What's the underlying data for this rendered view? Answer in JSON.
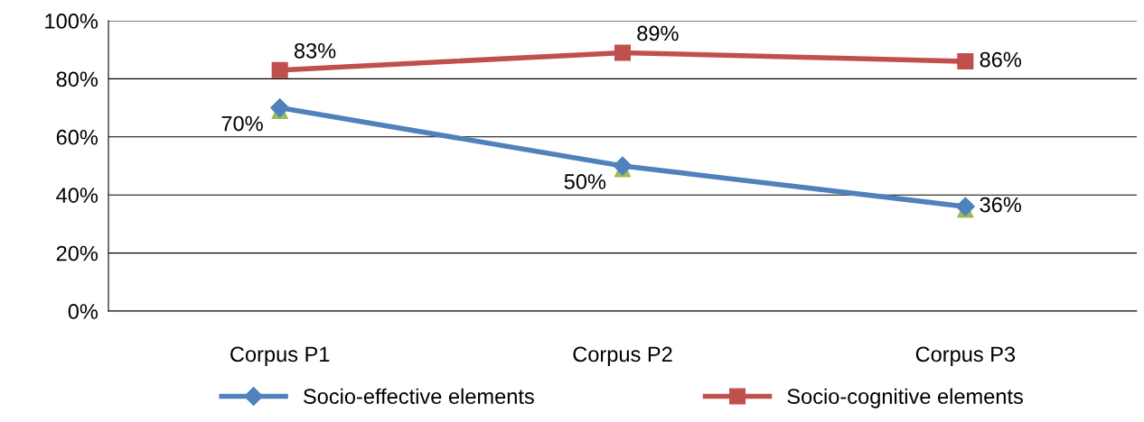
{
  "chart_data": {
    "type": "line",
    "categories": [
      "Corpus P1",
      "Corpus P2",
      "Corpus P3"
    ],
    "series": [
      {
        "type": "scatter",
        "color": "#9bbb59",
        "marker": "triangle",
        "values": [
          0.69,
          0.49,
          0.35
        ]
      },
      {
        "name": "Socio-effective elements",
        "color": "#4f81bd",
        "marker": "diamond",
        "values": [
          0.7,
          0.5,
          0.36
        ],
        "value_labels": [
          "70%",
          "50%",
          "36%"
        ]
      },
      {
        "name": "Socio-cognitive elements",
        "color": "#c0504d",
        "marker": "square",
        "values": [
          0.83,
          0.89,
          0.86
        ],
        "value_labels": [
          "83%",
          "89%",
          "86%"
        ]
      }
    ],
    "ylim": [
      0,
      1
    ],
    "yticks": [
      {
        "value": 0,
        "label": "0%"
      },
      {
        "value": 0.2,
        "label": "20%"
      },
      {
        "value": 0.4,
        "label": "40%"
      },
      {
        "value": 0.6,
        "label": "60%"
      },
      {
        "value": 0.8,
        "label": "80%"
      },
      {
        "value": 1,
        "label": "100%"
      }
    ],
    "grid": "y",
    "legend": "bottom",
    "line_style": "solid"
  }
}
